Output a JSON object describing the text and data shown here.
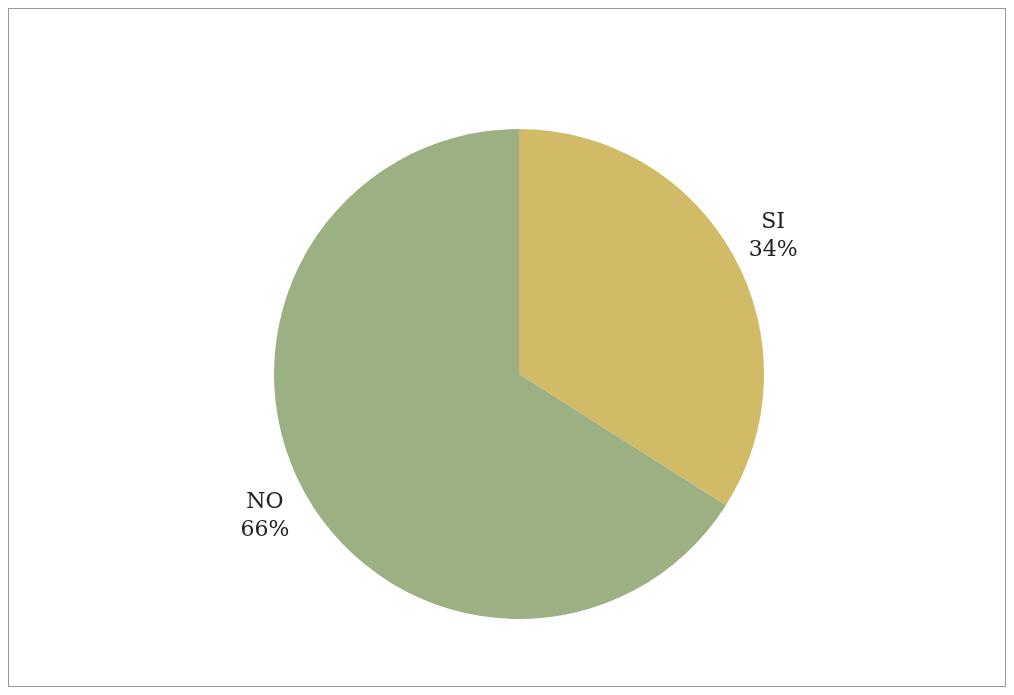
{
  "chart_data": {
    "type": "pie",
    "categories": [
      "SI",
      "NO"
    ],
    "values": [
      34,
      66
    ],
    "colors": [
      "#d1bb66",
      "#9db083"
    ],
    "value_labels": [
      "34%",
      "66%"
    ]
  }
}
